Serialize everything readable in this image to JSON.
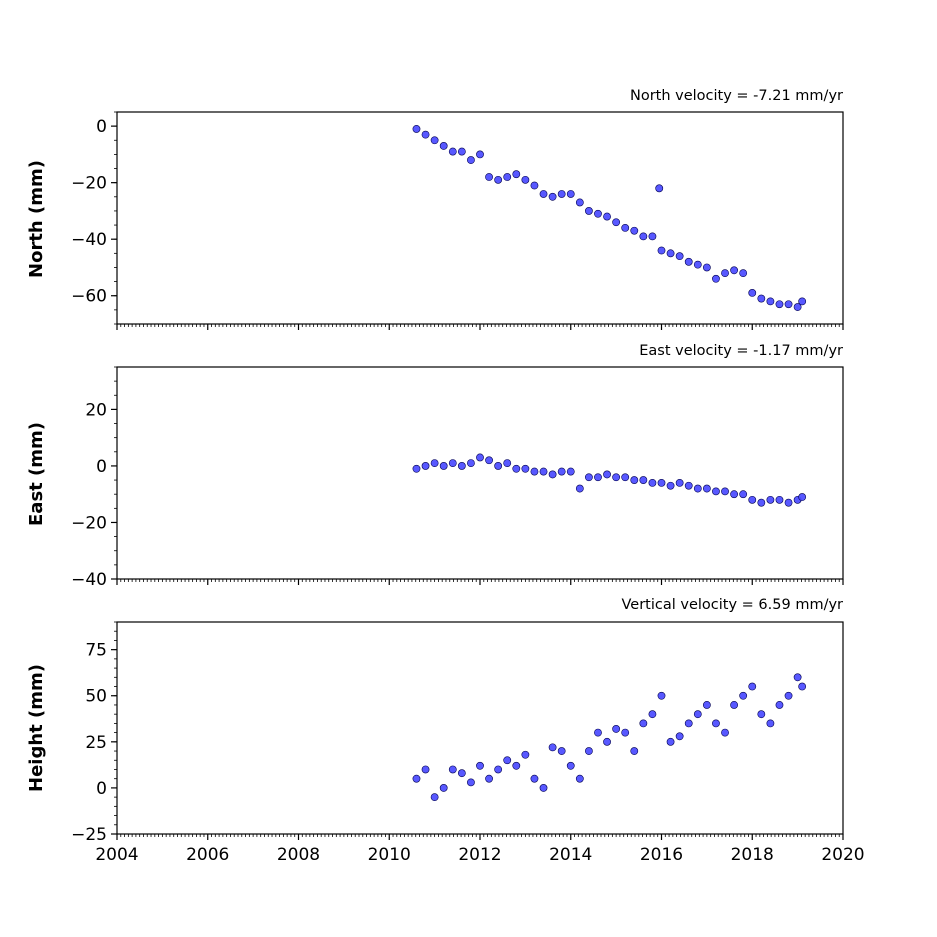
{
  "chart_data": [
    {
      "type": "scatter",
      "title": "North velocity = -7.21 mm/yr",
      "ylabel": "North (mm)",
      "xlim": [
        2004,
        2020
      ],
      "ylim": [
        -70,
        5
      ],
      "yticks": [
        0,
        -20,
        -40,
        -60
      ],
      "ytick_labels": [
        "0",
        "−20",
        "−40",
        "−60"
      ],
      "xticks_labeled": false,
      "color": "#4a4aff",
      "series": [
        {
          "x": [
            2010.6,
            2010.8,
            2011.0,
            2011.2,
            2011.4,
            2011.6,
            2011.8,
            2012.0,
            2012.2,
            2012.4,
            2012.6,
            2012.8,
            2013.0,
            2013.2,
            2013.4,
            2013.6,
            2013.8,
            2014.0,
            2014.2,
            2014.4,
            2014.6,
            2014.8,
            2015.0,
            2015.2,
            2015.4,
            2015.6,
            2015.8,
            2015.95,
            2016.0,
            2016.2,
            2016.4,
            2016.6,
            2016.8,
            2017.0,
            2017.2,
            2017.4,
            2017.6,
            2017.8,
            2018.0,
            2018.2,
            2018.4,
            2018.6,
            2018.8,
            2019.0,
            2019.1
          ],
          "y": [
            -1,
            -3,
            -5,
            -7,
            -9,
            -9,
            -12,
            -10,
            -18,
            -19,
            -18,
            -17,
            -19,
            -21,
            -24,
            -25,
            -24,
            -24,
            -27,
            -30,
            -31,
            -32,
            -34,
            -36,
            -37,
            -39,
            -39,
            -22,
            -44,
            -45,
            -46,
            -48,
            -49,
            -50,
            -54,
            -52,
            -51,
            -52,
            -59,
            -61,
            -62,
            -63,
            -63,
            -64,
            -62
          ]
        }
      ]
    },
    {
      "type": "scatter",
      "title": "East velocity = -1.17 mm/yr",
      "ylabel": "East (mm)",
      "xlim": [
        2004,
        2020
      ],
      "ylim": [
        -40,
        35
      ],
      "yticks": [
        20,
        0,
        -20,
        -40
      ],
      "ytick_labels": [
        "20",
        "0",
        "−20",
        "−40"
      ],
      "xticks_labeled": false,
      "color": "#4a4aff",
      "series": [
        {
          "x": [
            2010.6,
            2010.8,
            2011.0,
            2011.2,
            2011.4,
            2011.6,
            2011.8,
            2012.0,
            2012.2,
            2012.4,
            2012.6,
            2012.8,
            2013.0,
            2013.2,
            2013.4,
            2013.6,
            2013.8,
            2014.0,
            2014.2,
            2014.4,
            2014.6,
            2014.8,
            2015.0,
            2015.2,
            2015.4,
            2015.6,
            2015.8,
            2016.0,
            2016.2,
            2016.4,
            2016.6,
            2016.8,
            2017.0,
            2017.2,
            2017.4,
            2017.6,
            2017.8,
            2018.0,
            2018.2,
            2018.4,
            2018.6,
            2018.8,
            2019.0,
            2019.1
          ],
          "y": [
            -1,
            0,
            1,
            0,
            1,
            0,
            1,
            3,
            2,
            0,
            1,
            -1,
            -1,
            -2,
            -2,
            -3,
            -2,
            -2,
            -8,
            -4,
            -4,
            -3,
            -4,
            -4,
            -5,
            -5,
            -6,
            -6,
            -7,
            -6,
            -7,
            -8,
            -8,
            -9,
            -9,
            -10,
            -10,
            -12,
            -13,
            -12,
            -12,
            -13,
            -12,
            -11
          ]
        }
      ]
    },
    {
      "type": "scatter",
      "title": "Vertical velocity = 6.59 mm/yr",
      "ylabel": "Height (mm)",
      "xlim": [
        2004,
        2020
      ],
      "ylim": [
        -25,
        90
      ],
      "yticks": [
        75,
        50,
        25,
        0,
        -25
      ],
      "ytick_labels": [
        "75",
        "50",
        "25",
        "0",
        "−25"
      ],
      "xticks": [
        2004,
        2006,
        2008,
        2010,
        2012,
        2014,
        2016,
        2018,
        2020
      ],
      "xtick_labels": [
        "2004",
        "2006",
        "2008",
        "2010",
        "2012",
        "2014",
        "2016",
        "2018",
        "2020"
      ],
      "xticks_labeled": true,
      "color": "#4a4aff",
      "series": [
        {
          "x": [
            2010.6,
            2010.8,
            2011.0,
            2011.2,
            2011.4,
            2011.6,
            2011.8,
            2012.0,
            2012.2,
            2012.4,
            2012.6,
            2012.8,
            2013.0,
            2013.2,
            2013.4,
            2013.6,
            2013.8,
            2014.0,
            2014.2,
            2014.4,
            2014.6,
            2014.8,
            2015.0,
            2015.2,
            2015.4,
            2015.6,
            2015.8,
            2016.0,
            2016.2,
            2016.4,
            2016.6,
            2016.8,
            2017.0,
            2017.2,
            2017.4,
            2017.6,
            2017.8,
            2018.0,
            2018.2,
            2018.4,
            2018.6,
            2018.8,
            2019.0,
            2019.1
          ],
          "y": [
            5,
            10,
            -5,
            0,
            10,
            8,
            3,
            12,
            5,
            10,
            15,
            12,
            18,
            5,
            0,
            22,
            20,
            12,
            5,
            20,
            30,
            25,
            32,
            30,
            20,
            35,
            40,
            50,
            25,
            28,
            35,
            40,
            45,
            35,
            30,
            45,
            50,
            55,
            40,
            35,
            45,
            50,
            60,
            55
          ]
        }
      ]
    }
  ]
}
